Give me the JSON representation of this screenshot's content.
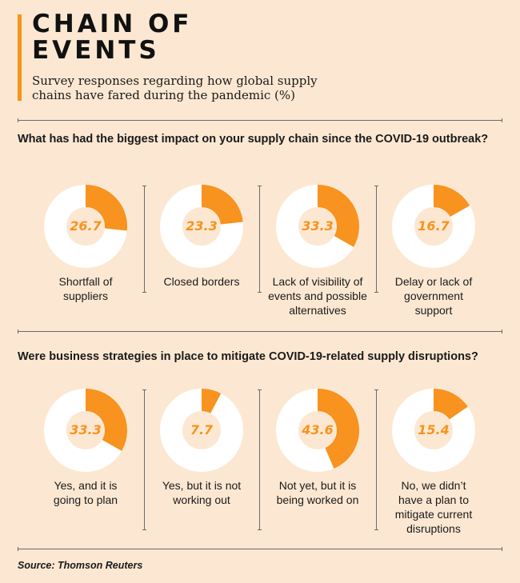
{
  "header": {
    "title_lines": [
      "CHAIN OF",
      "EVENTS"
    ],
    "subtitle_lines": [
      "Survey responses regarding how global supply",
      "chains have fared during the pandemic (%)"
    ]
  },
  "colors": {
    "accent": "#f7931e",
    "ring": "#ffffff",
    "background": "#fce8d2"
  },
  "chart_data": [
    {
      "type": "pie",
      "title": "What has had the biggest impact on your supply chain since the COVID-19 outbreak?",
      "items": [
        {
          "value": 26.7,
          "display": "26.7",
          "label_lines": [
            "Shortfall of",
            "suppliers"
          ]
        },
        {
          "value": 23.3,
          "display": "23.3",
          "label_lines": [
            "Closed borders"
          ]
        },
        {
          "value": 33.3,
          "display": "33.3",
          "label_lines": [
            "Lack of visibility of",
            "events and possible",
            "alternatives"
          ]
        },
        {
          "value": 16.7,
          "display": "16.7",
          "label_lines": [
            "Delay or lack of",
            "government",
            "support"
          ]
        }
      ]
    },
    {
      "type": "pie",
      "title": "Were business strategies in place to mitigate COVID-19-related supply disruptions?",
      "items": [
        {
          "value": 33.3,
          "display": "33.3",
          "label_lines": [
            "Yes, and it is",
            "going to plan"
          ]
        },
        {
          "value": 7.7,
          "display": "7.7",
          "label_lines": [
            "Yes, but it is not",
            "working out"
          ]
        },
        {
          "value": 43.6,
          "display": "43.6",
          "label_lines": [
            "Not yet, but it is",
            "being worked on"
          ]
        },
        {
          "value": 15.4,
          "display": "15.4",
          "label_lines": [
            "No, we didn’t",
            "have a plan to",
            "mitigate current",
            "disruptions"
          ]
        }
      ]
    }
  ],
  "source": "Source: Thomson Reuters"
}
